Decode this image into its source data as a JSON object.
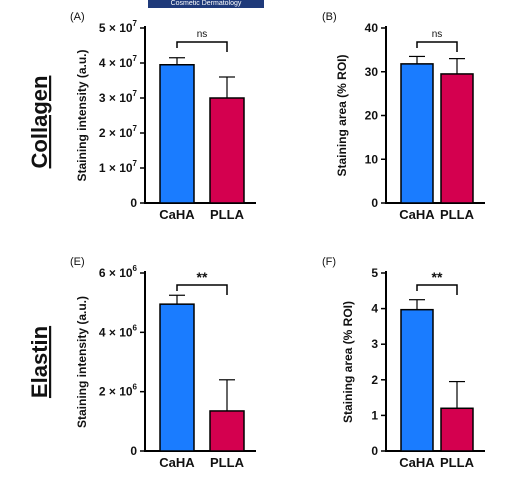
{
  "banner": "Cosmetic Dermatology",
  "row_labels": [
    "Collagen",
    "Elastin"
  ],
  "colors": {
    "CaHA": "#1a7cff",
    "PLLA": "#d4004f",
    "axis": "#000000"
  },
  "chart_data": [
    {
      "type": "bar",
      "panel": "(A)",
      "categories": [
        "CaHA",
        "PLLA"
      ],
      "values": [
        39500000,
        30000000
      ],
      "errors": [
        2000000,
        6000000
      ],
      "ylabel": "Staining intensity (a.u.)",
      "ylim": [
        0,
        50000000
      ],
      "ticks": [
        0,
        10000000,
        20000000,
        30000000,
        40000000,
        50000000
      ],
      "tick_labels": [
        "0",
        "1 × 10",
        "2 × 10",
        "3 × 10",
        "4 × 10",
        "5 × 10"
      ],
      "tick_exps": [
        "",
        "7",
        "7",
        "7",
        "7",
        "7"
      ],
      "significance": "ns"
    },
    {
      "type": "bar",
      "panel": "(B)",
      "categories": [
        "CaHA",
        "PLLA"
      ],
      "values": [
        31.8,
        29.5
      ],
      "errors": [
        1.7,
        3.5
      ],
      "ylabel": "Staining area (% ROI)",
      "ylim": [
        0,
        40
      ],
      "ticks": [
        0,
        10,
        20,
        30,
        40
      ],
      "tick_labels": [
        "0",
        "10",
        "20",
        "30",
        "40"
      ],
      "tick_exps": [
        "",
        "",
        "",
        "",
        ""
      ],
      "significance": "ns"
    },
    {
      "type": "bar",
      "panel": "(E)",
      "categories": [
        "CaHA",
        "PLLA"
      ],
      "values": [
        4950000,
        1350000
      ],
      "errors": [
        300000,
        1050000
      ],
      "ylabel": "Staining intensity (a.u.)",
      "ylim": [
        0,
        6000000
      ],
      "ticks": [
        0,
        2000000,
        4000000,
        6000000
      ],
      "tick_labels": [
        "0",
        "2 × 10",
        "4 × 10",
        "6 × 10"
      ],
      "tick_exps": [
        "",
        "6",
        "6",
        "6"
      ],
      "significance": "**"
    },
    {
      "type": "bar",
      "panel": "(F)",
      "categories": [
        "CaHA",
        "PLLA"
      ],
      "values": [
        3.97,
        1.2
      ],
      "errors": [
        0.28,
        0.75
      ],
      "ylabel": "Staining area (% ROI)",
      "ylim": [
        0,
        5
      ],
      "ticks": [
        0,
        1,
        2,
        3,
        4,
        5
      ],
      "tick_labels": [
        "0",
        "1",
        "2",
        "3",
        "4",
        "5"
      ],
      "tick_exps": [
        "",
        "",
        "",
        "",
        "",
        ""
      ],
      "significance": "**"
    }
  ]
}
